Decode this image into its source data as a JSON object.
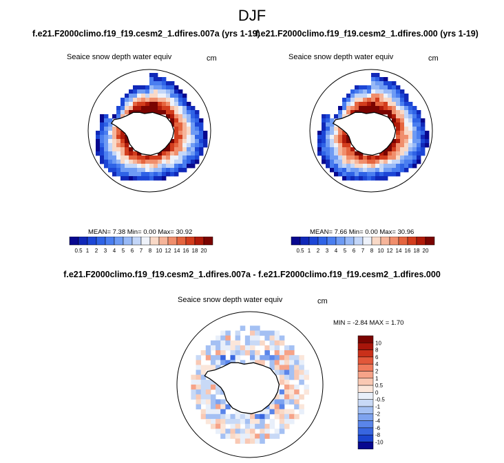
{
  "page": {
    "title": "DJF",
    "left_run": "f.e21.F2000climo.f19_f19.cesm2_1.dfires.007a (yrs 1-19)",
    "right_run": "f.e21.F2000climo.f19_f19.cesm2_1.dfires.000 (yrs 1-19)",
    "diff_title": "f.e21.F2000climo.f19_f19.cesm2_1.dfires.007a - f.e21.F2000climo.f19_f19.cesm2_1.dfires.000"
  },
  "panels": {
    "left": {
      "variable": "Seaice snow depth water equiv",
      "units": "cm",
      "stats": "MEAN=   7.38  Min=   0.00  Max=  30.92"
    },
    "right": {
      "variable": "Seaice snow depth water equiv",
      "units": "cm",
      "stats": "MEAN=   7.66  Min=   0.00  Max=  30.96"
    },
    "diff": {
      "variable": "Seaice snow depth water equiv",
      "units": "cm",
      "stats": "MIN =  -2.84 MAX =   1.70"
    }
  },
  "chart_data": [
    {
      "type": "heatmap",
      "projection": "south-polar-stereographic",
      "title": "Seaice snow depth water equiv",
      "units": "cm",
      "stats": {
        "mean": 7.38,
        "min": 0.0,
        "max": 30.92
      },
      "colorbar": {
        "orientation": "horizontal",
        "ticks": [
          "0.5",
          "1",
          "2",
          "3",
          "4",
          "5",
          "6",
          "7",
          "8",
          "10",
          "12",
          "14",
          "16",
          "18",
          "20"
        ],
        "colors": [
          "#08088f",
          "#1028b8",
          "#1c46d6",
          "#2f63e6",
          "#4a7ef0",
          "#6e9bf4",
          "#98b9f6",
          "#c3d6f8",
          "#eef2fa",
          "#f9d9c7",
          "#f6b59a",
          "#f08e6c",
          "#e5653f",
          "#d33d1d",
          "#b01a09",
          "#7a0401"
        ]
      }
    },
    {
      "type": "heatmap",
      "projection": "south-polar-stereographic",
      "title": "Seaice snow depth water equiv",
      "units": "cm",
      "stats": {
        "mean": 7.66,
        "min": 0.0,
        "max": 30.96
      },
      "colorbar": {
        "orientation": "horizontal",
        "ticks": [
          "0.5",
          "1",
          "2",
          "3",
          "4",
          "5",
          "6",
          "7",
          "8",
          "10",
          "12",
          "14",
          "16",
          "18",
          "20"
        ],
        "colors": [
          "#08088f",
          "#1028b8",
          "#1c46d6",
          "#2f63e6",
          "#4a7ef0",
          "#6e9bf4",
          "#98b9f6",
          "#c3d6f8",
          "#eef2fa",
          "#f9d9c7",
          "#f6b59a",
          "#f08e6c",
          "#e5653f",
          "#d33d1d",
          "#b01a09",
          "#7a0401"
        ]
      }
    },
    {
      "type": "heatmap",
      "projection": "south-polar-stereographic",
      "title": "Seaice snow depth water equiv",
      "units": "cm",
      "stats": {
        "min": -2.84,
        "max": 1.7
      },
      "colorbar": {
        "orientation": "vertical",
        "ticks": [
          "10",
          "8",
          "6",
          "4",
          "2",
          "1",
          "0.5",
          "0",
          "-0.5",
          "-1",
          "-2",
          "-4",
          "-6",
          "-8",
          "-10"
        ],
        "colors": [
          "#7a0401",
          "#a8150a",
          "#c9301a",
          "#e2573a",
          "#f07a5c",
          "#f6a388",
          "#f9c8b3",
          "#fbe6da",
          "#e8effa",
          "#c8d9f6",
          "#a4c0f3",
          "#7ea3ef",
          "#5a85ea",
          "#3866e0",
          "#1b45cf",
          "#08088f"
        ]
      }
    }
  ]
}
